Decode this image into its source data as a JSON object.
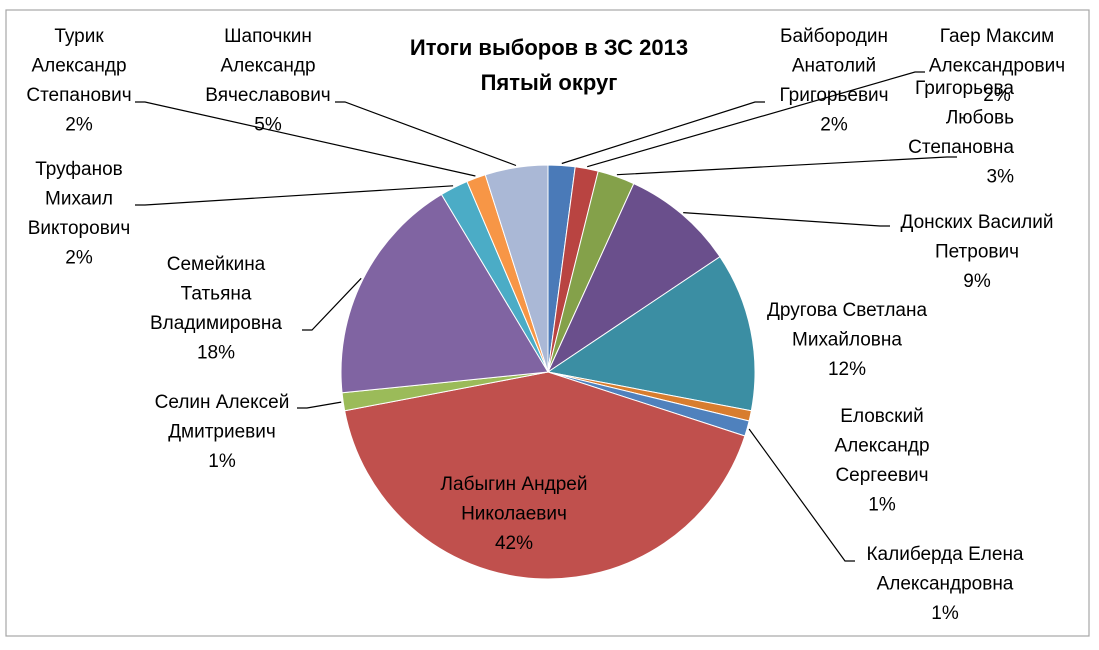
{
  "chart_data": {
    "type": "pie",
    "title": "Итоги выборов в ЗС 2013",
    "subtitle": "Пятый округ",
    "slices": [
      {
        "name": "Байбородин Анатолий Григорьевич",
        "label_lines": [
          "Байбородин",
          "Анатолий",
          "Григорьевич"
        ],
        "percent_label": "2%",
        "value": 2.1,
        "color": "#4a7ab8"
      },
      {
        "name": "Гаер Максим Александрович",
        "label_lines": [
          "Гаер Максим",
          "Александрович"
        ],
        "percent_label": "2%",
        "value": 1.8,
        "color": "#b94441"
      },
      {
        "name": "Григорьева Любовь Степановна",
        "label_lines": [
          "Григорьева",
          "Любовь",
          "Степановна"
        ],
        "percent_label": "3%",
        "value": 2.9,
        "color": "#84a14a"
      },
      {
        "name": "Донских Василий Петрович",
        "label_lines": [
          "Донских Василий",
          "Петрович"
        ],
        "percent_label": "9%",
        "value": 8.8,
        "color": "#6a4f8c"
      },
      {
        "name": "Другова Светлана Михайловна",
        "label_lines": [
          "Другова Светлана",
          "Михайловна"
        ],
        "percent_label": "12%",
        "value": 12.4,
        "color": "#3b8ea3"
      },
      {
        "name": "Еловский Александр Сергеевич",
        "label_lines": [
          "Еловский",
          "Александр",
          "Сергеевич"
        ],
        "percent_label": "1%",
        "value": 0.8,
        "color": "#d87d2e"
      },
      {
        "name": "Калиберда Елена Александровна",
        "label_lines": [
          "Калиберда Елена",
          "Александровна"
        ],
        "percent_label": "1%",
        "value": 1.2,
        "color": "#4f81bd"
      },
      {
        "name": "Лабыгин Андрей Николаевич",
        "label_lines": [
          "Лабыгин Андрей",
          "Николаевич"
        ],
        "percent_label": "42%",
        "value": 42.0,
        "color": "#c0504d"
      },
      {
        "name": "Селин Алексей Дмитриевич",
        "label_lines": [
          "Селин Алексей",
          "Дмитриевич"
        ],
        "percent_label": "1%",
        "value": 1.4,
        "color": "#9bbb59"
      },
      {
        "name": "Семейкина Татьяна Владимировна",
        "label_lines": [
          "Семейкина",
          "Татьяна",
          "Владимировна"
        ],
        "percent_label": "18%",
        "value": 18.0,
        "color": "#8064a2"
      },
      {
        "name": "Труфанов Михаил Викторович",
        "label_lines": [
          "Труфанов",
          "Михаил",
          "Викторович"
        ],
        "percent_label": "2%",
        "value": 2.2,
        "color": "#4bacc6"
      },
      {
        "name": "Турик Александр Степанович",
        "label_lines": [
          "Турик",
          "Александр",
          "Степанович"
        ],
        "percent_label": "2%",
        "value": 1.5,
        "color": "#f79646"
      },
      {
        "name": "Шапочкин Александр Вячеславович",
        "label_lines": [
          "Шапочкин",
          "Александр",
          "Вячеславович"
        ],
        "percent_label": "5%",
        "value": 4.9,
        "color": "#aab8d6"
      }
    ]
  }
}
